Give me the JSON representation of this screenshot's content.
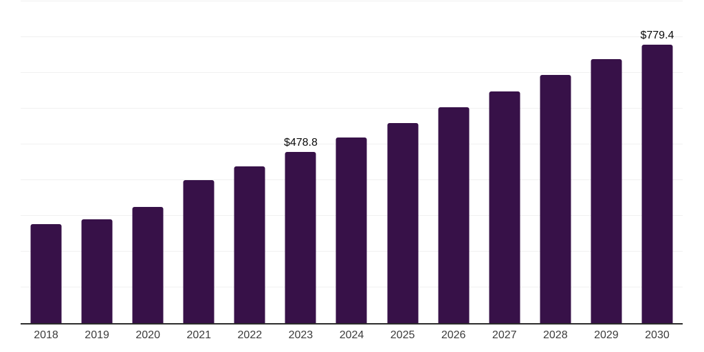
{
  "chart_data": {
    "type": "bar",
    "title": "",
    "categories": [
      "2018",
      "2019",
      "2020",
      "2021",
      "2022",
      "2023",
      "2024",
      "2025",
      "2026",
      "2027",
      "2028",
      "2029",
      "2030"
    ],
    "values": [
      277,
      291,
      325,
      400,
      438,
      478.8,
      519,
      559,
      604,
      648,
      694,
      738,
      779.4
    ],
    "data_labels": [
      "",
      "",
      "",
      "",
      "",
      "$478.8",
      "",
      "",
      "",
      "",
      "",
      "",
      "$779.4"
    ],
    "currency_prefix": "$",
    "ylim": [
      0,
      900
    ],
    "grid_step": 100,
    "grid": true,
    "legend": false,
    "y_axis_labels_visible": false,
    "colors": {
      "bar": "#371148",
      "gridline": "#f0f0f0",
      "axis": "#2b2b2b",
      "tick_label": "#3b3b3b",
      "data_label": "#0a0a0a",
      "background": "#ffffff"
    }
  }
}
